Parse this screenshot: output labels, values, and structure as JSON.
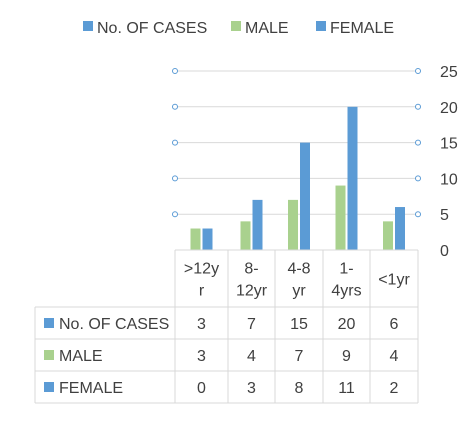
{
  "chart_data": {
    "type": "bar",
    "categories": [
      ">12yr",
      "8-12yr",
      "4-8 yr",
      "1-4yrs",
      "<1yr"
    ],
    "category_label_lines": [
      [
        ">12y",
        "r"
      ],
      [
        "8-",
        "12yr"
      ],
      [
        "4-8",
        "yr"
      ],
      [
        "1-",
        "4yrs"
      ],
      [
        "<1yr"
      ]
    ],
    "series": [
      {
        "name": "No. OF CASES",
        "values": [
          3,
          7,
          15,
          20,
          6
        ],
        "color": "#5B9BD5"
      },
      {
        "name": "MALE",
        "values": [
          3,
          4,
          7,
          9,
          4
        ],
        "color": "#A9D18E"
      },
      {
        "name": "FEMALE",
        "values": [
          0,
          3,
          8,
          11,
          2
        ],
        "color": "#5B9BD5"
      }
    ],
    "plotted_series": [
      {
        "name": "MALE",
        "values": [
          3,
          4,
          7,
          9,
          4
        ],
        "color": "#A9D18E"
      },
      {
        "name": "FEMALE",
        "values": [
          3,
          7,
          15,
          20,
          6
        ],
        "color": "#5B9BD5"
      }
    ],
    "ylim": [
      0,
      25
    ],
    "yticks": [
      0,
      5,
      10,
      15,
      20,
      25
    ],
    "y_axis_position": "right",
    "grid": true,
    "legend_position": "top",
    "has_data_table": true,
    "colors": {
      "grid": "#d9d9d9",
      "table_border": "#d9d9d9",
      "marker": "#5B9BD5",
      "text": "#404040"
    }
  }
}
